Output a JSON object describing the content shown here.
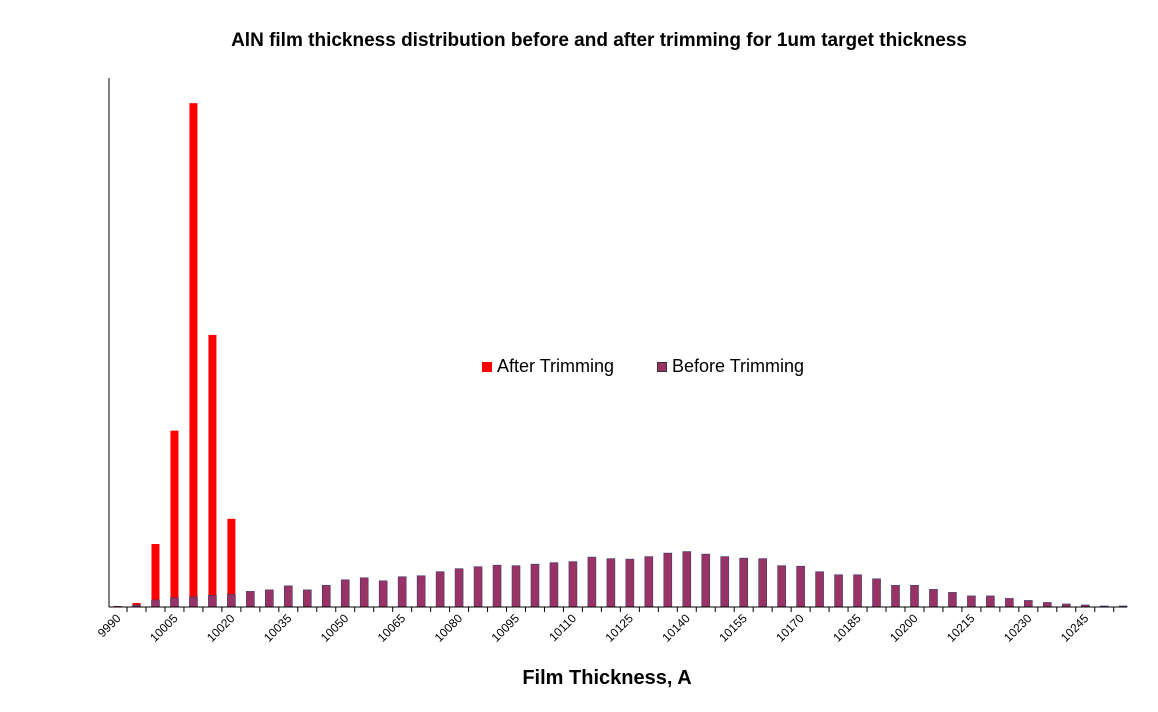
{
  "chart_data": {
    "type": "bar",
    "title": "AlN film thickness distribution before and after trimming for 1um target thickness",
    "xlabel": "Film Thickness, A",
    "ylabel": "",
    "legend_position": "center",
    "grid": false,
    "x_ticks": [
      "9990",
      "10005",
      "10020",
      "10035",
      "10050",
      "10065",
      "10080",
      "10095",
      "10110",
      "10125",
      "10140",
      "10155",
      "10170",
      "10185",
      "10200",
      "10215",
      "10230",
      "10245"
    ],
    "x_start": 9990,
    "x_step": 5,
    "ylim": [
      0,
      1.05
    ],
    "colors": {
      "after": "#ff0000",
      "before": "#993366"
    },
    "series": [
      {
        "name": "After Trimming",
        "values": [
          0.002,
          0.008,
          0.125,
          0.35,
          1.0,
          0.54,
          0.175,
          0,
          0,
          0,
          0,
          0,
          0,
          0,
          0,
          0,
          0,
          0,
          0,
          0,
          0,
          0,
          0,
          0,
          0,
          0,
          0,
          0,
          0,
          0,
          0,
          0,
          0,
          0,
          0,
          0,
          0,
          0,
          0,
          0,
          0,
          0,
          0,
          0,
          0,
          0,
          0,
          0,
          0,
          0,
          0,
          0,
          0,
          0
        ]
      },
      {
        "name": "Before Trimming",
        "values": [
          0.001,
          0.004,
          0.014,
          0.018,
          0.02,
          0.023,
          0.025,
          0.031,
          0.034,
          0.042,
          0.034,
          0.043,
          0.054,
          0.058,
          0.052,
          0.06,
          0.062,
          0.07,
          0.076,
          0.08,
          0.083,
          0.082,
          0.085,
          0.088,
          0.09,
          0.099,
          0.096,
          0.095,
          0.1,
          0.107,
          0.11,
          0.105,
          0.1,
          0.097,
          0.096,
          0.082,
          0.081,
          0.07,
          0.064,
          0.064,
          0.056,
          0.043,
          0.043,
          0.035,
          0.029,
          0.022,
          0.022,
          0.017,
          0.013,
          0.009,
          0.006,
          0.004,
          0.002,
          0.002
        ]
      }
    ]
  }
}
